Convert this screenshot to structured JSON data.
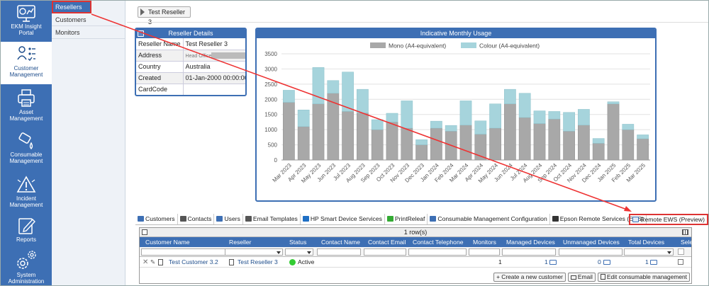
{
  "nav": {
    "items": [
      {
        "label": "EKM Insight Portal",
        "icon": "dashboard-icon"
      },
      {
        "label": "Customer Management",
        "icon": "customer-management-icon"
      },
      {
        "label": "Asset Management",
        "icon": "printer-icon"
      },
      {
        "label": "Consumable Management",
        "icon": "toner-icon"
      },
      {
        "label": "Incident Management",
        "icon": "incident-icon"
      },
      {
        "label": "Reports",
        "icon": "report-icon"
      },
      {
        "label": "System Administration",
        "icon": "gear-icon"
      }
    ]
  },
  "submenu": {
    "items": [
      "Resellers",
      "Customers",
      "Monitors"
    ]
  },
  "breadcrumb": {
    "label": "Test Reseller 3"
  },
  "details": {
    "title": "Reseller Details",
    "rows": [
      {
        "key": "Reseller Name",
        "value": "Test Reseller 3"
      },
      {
        "key": "Address",
        "value": "Head Office"
      },
      {
        "key": "Country",
        "value": "Australia"
      },
      {
        "key": "Created",
        "value": "01-Jan-2000 00:00:00"
      },
      {
        "key": "CardCode",
        "value": ""
      }
    ]
  },
  "usage": {
    "title": "Indicative Monthly Usage"
  },
  "chart_data": {
    "type": "bar",
    "stacked": true,
    "categories": [
      "Mar 2023",
      "Apr 2023",
      "May 2023",
      "Jun 2023",
      "Jul 2023",
      "Aug 2023",
      "Sep 2023",
      "Oct 2023",
      "Nov 2023",
      "Dec 2023",
      "Jan 2024",
      "Feb 2024",
      "Mar 2024",
      "Apr 2024",
      "May 2024",
      "Jun 2024",
      "Jul 2024",
      "Aug 2024",
      "Sep 2024",
      "Oct 2024",
      "Nov 2024",
      "Dec 2024",
      "Jan 2025",
      "Feb 2025",
      "Mar 2025"
    ],
    "series": [
      {
        "name": "Mono (A4-equivalent)",
        "color": "#a8a8a8",
        "values": [
          1900,
          1100,
          1850,
          2200,
          1600,
          1550,
          1000,
          1250,
          1050,
          500,
          1050,
          950,
          1150,
          850,
          1050,
          1850,
          1400,
          1200,
          1350,
          950,
          1150,
          550,
          1850,
          1000,
          700
        ]
      },
      {
        "name": "Colour (A4-equivalent)",
        "color": "#a6d4dc",
        "values": [
          400,
          550,
          1200,
          420,
          1300,
          780,
          330,
          290,
          900,
          170,
          230,
          190,
          800,
          440,
          800,
          480,
          800,
          420,
          250,
          620,
          520,
          160,
          70,
          180,
          130
        ]
      }
    ],
    "ylim": [
      0,
      3500
    ],
    "yticks": [
      0,
      500,
      1000,
      1500,
      2000,
      2500,
      3000,
      3500
    ],
    "legend": "top",
    "grid": true
  },
  "tabs": [
    {
      "label": "Customers",
      "color": "#3d6fb4"
    },
    {
      "label": "Contacts",
      "color": "#555"
    },
    {
      "label": "Users",
      "color": "#3d6fb4"
    },
    {
      "label": "Email Templates",
      "color": "#555"
    },
    {
      "label": "HP Smart Device Services",
      "color": "#1f6fc4"
    },
    {
      "label": "PrintReleaf",
      "color": "#3a3"
    },
    {
      "label": "Consumable Management Configuration",
      "color": "#3d6fb4"
    },
    {
      "label": "Epson Remote Services (ERS)",
      "color": "#333"
    }
  ],
  "tab_remote": {
    "label": "Remote EWS (Preview)"
  },
  "grid": {
    "rowcount": "1 row(s)",
    "columns": [
      "Customer Name",
      "Reseller",
      "Status",
      "Contact Name",
      "Contact Email",
      "Contact Telephone",
      "Monitors",
      "Managed Devices",
      "Unmanaged Devices",
      "Total Devices",
      "Select"
    ],
    "row": {
      "customer": "Test Customer 3.2",
      "reseller": "Test Reseller 3",
      "status": "Active",
      "monitors": "1",
      "managed": "1",
      "unmanaged": "0",
      "total": "1"
    },
    "buttons": [
      "+ Create a new customer",
      "Email",
      "Edit consumable management"
    ]
  }
}
